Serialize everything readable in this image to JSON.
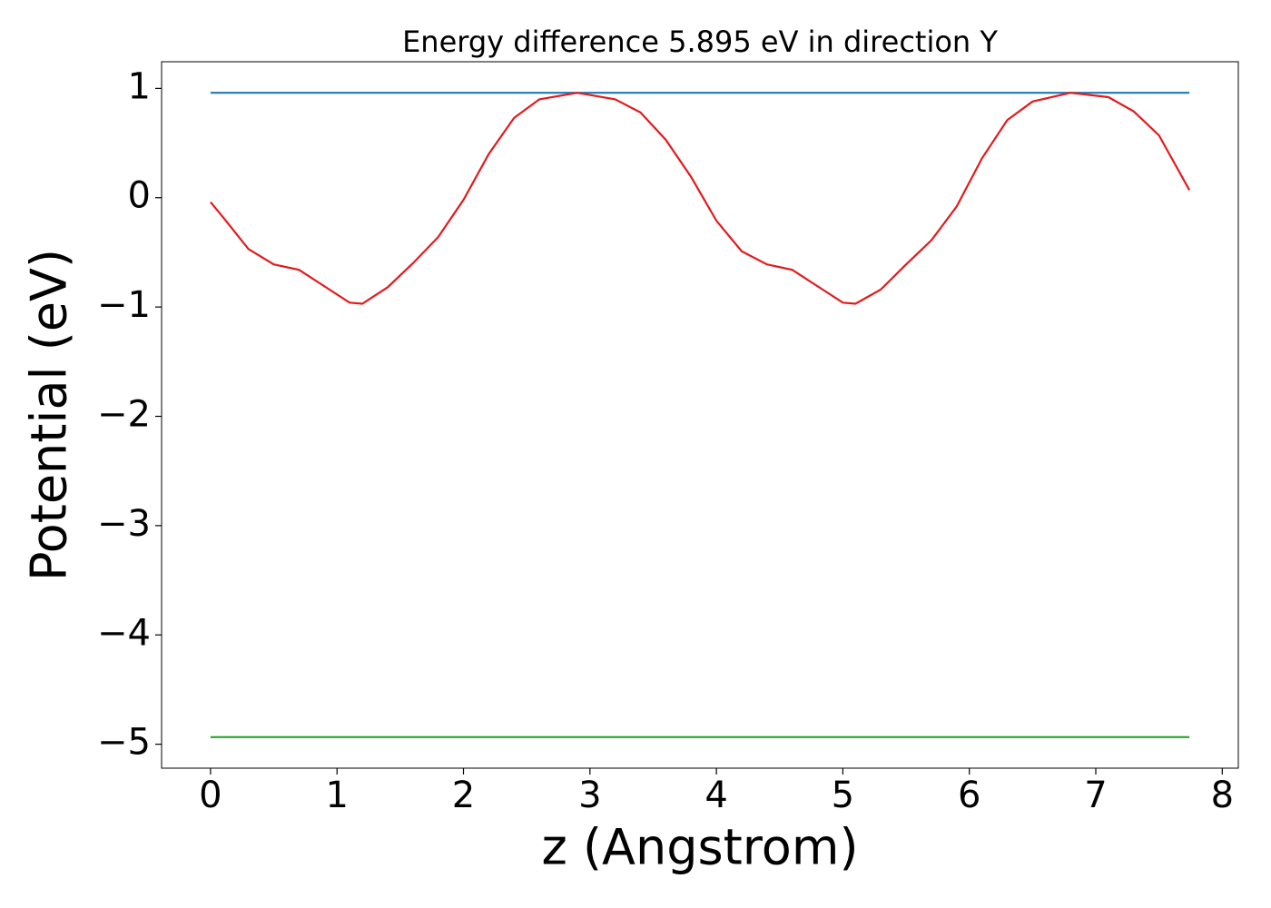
{
  "chart_data": {
    "type": "line",
    "title": "Energy difference 5.895 eV in direction Y",
    "x_label": "z (Angstrom)",
    "y_label": "Potential (eV)",
    "xlim": [
      -0.387,
      8.127
    ],
    "ylim": [
      -5.219,
      1.244
    ],
    "xticks": [
      0,
      1,
      2,
      3,
      4,
      5,
      6,
      7,
      8
    ],
    "yticks": [
      {
        "value": -5,
        "label": "−5"
      },
      {
        "value": -4,
        "label": "−4"
      },
      {
        "value": -3,
        "label": "−3"
      },
      {
        "value": -2,
        "label": "−2"
      },
      {
        "value": -1,
        "label": "−1"
      },
      0,
      1
    ],
    "series": [
      {
        "color": "#1f77b4",
        "x": [
          0,
          7.74
        ],
        "values": [
          0.96,
          0.96
        ]
      },
      {
        "color": "#2ca02c",
        "x": [
          0,
          7.74
        ],
        "values": [
          -4.935,
          -4.935
        ]
      },
      {
        "color": "#e31a1c",
        "x": [
          0,
          0.1,
          0.3,
          0.5,
          0.7,
          0.9,
          1.1,
          1.2,
          1.4,
          1.6,
          1.8,
          2.0,
          2.2,
          2.4,
          2.6,
          2.9,
          3.2,
          3.4,
          3.6,
          3.8,
          4.0,
          4.2,
          4.4,
          4.6,
          4.8,
          5.0,
          5.1,
          5.3,
          5.5,
          5.7,
          5.9,
          6.1,
          6.3,
          6.5,
          6.8,
          7.1,
          7.3,
          7.5,
          7.74
        ],
        "values": [
          -0.04,
          -0.18,
          -0.47,
          -0.61,
          -0.66,
          -0.81,
          -0.96,
          -0.97,
          -0.82,
          -0.6,
          -0.36,
          -0.02,
          0.4,
          0.73,
          0.9,
          0.96,
          0.9,
          0.78,
          0.53,
          0.19,
          -0.21,
          -0.49,
          -0.61,
          -0.66,
          -0.81,
          -0.96,
          -0.97,
          -0.84,
          -0.61,
          -0.39,
          -0.08,
          0.36,
          0.71,
          0.88,
          0.96,
          0.92,
          0.79,
          0.57,
          0.07
        ]
      }
    ]
  }
}
